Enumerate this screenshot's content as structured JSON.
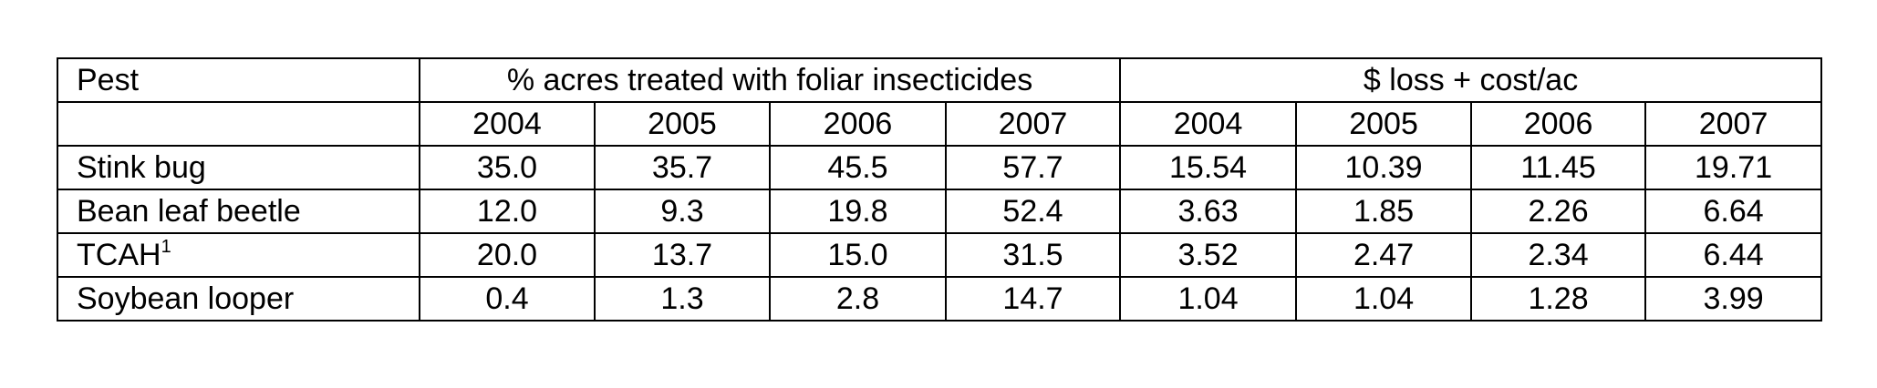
{
  "table": {
    "header": {
      "pest": "Pest",
      "group1": "% acres treated with foliar insecticides",
      "group2": "$ loss + cost/ac"
    },
    "years": [
      "2004",
      "2005",
      "2006",
      "2007",
      "2004",
      "2005",
      "2006",
      "2007"
    ],
    "rows": [
      {
        "pest": "Stink bug",
        "values": [
          "35.0",
          "35.7",
          "45.5",
          "57.7",
          "15.54",
          "10.39",
          "11.45",
          "19.71"
        ]
      },
      {
        "pest": "Bean leaf beetle",
        "values": [
          "12.0",
          "9.3",
          "19.8",
          "52.4",
          "3.63",
          "1.85",
          "2.26",
          "6.64"
        ]
      },
      {
        "pest": "TCAH",
        "footnote": "1",
        "values": [
          "20.0",
          "13.7",
          "15.0",
          "31.5",
          "3.52",
          "2.47",
          "2.34",
          "6.44"
        ]
      },
      {
        "pest": "Soybean looper",
        "values": [
          "0.4",
          "1.3",
          "2.8",
          "14.7",
          "1.04",
          "1.04",
          "1.28",
          "3.99"
        ]
      }
    ]
  }
}
